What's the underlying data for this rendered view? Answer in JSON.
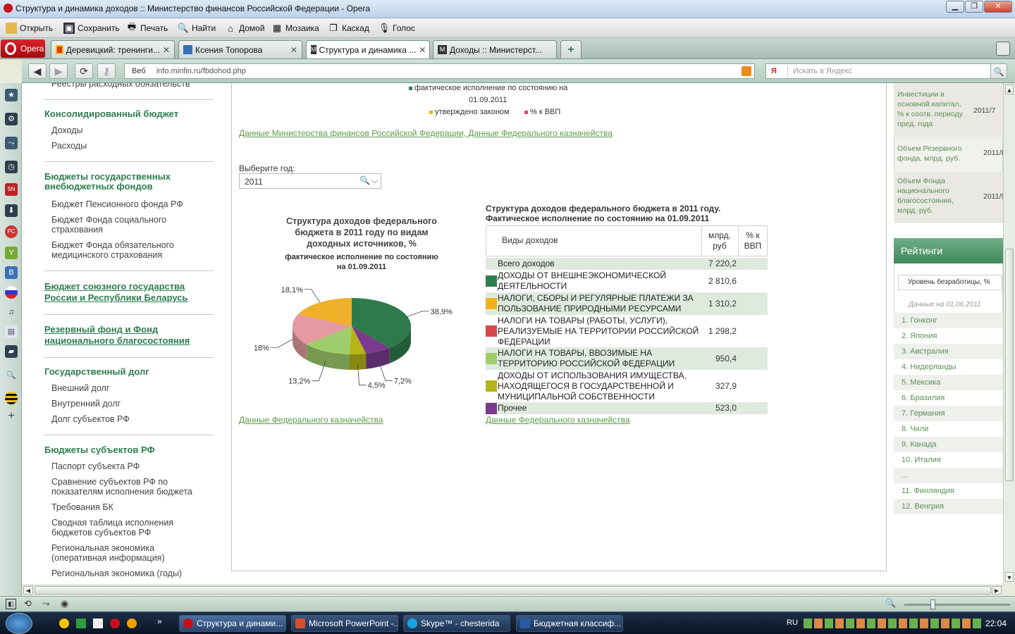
{
  "window": {
    "title": "Структура и динамика доходов :: Министерство финансов Российской Федерации - Opera",
    "minimize": "▁",
    "restore": "❐",
    "close": "✕"
  },
  "toolbar": {
    "open": "Открыть",
    "save": "Сохранить",
    "print": "Печать",
    "find": "Найти",
    "home": "Домой",
    "tile": "Мозаика",
    "cascade": "Каскад",
    "voice": "Голос"
  },
  "tabs": {
    "opera_button": "Opera",
    "items": [
      {
        "label": "Деревицкий: тренинги...",
        "close": "✕"
      },
      {
        "label": "Ксения Топорова",
        "close": "✕"
      },
      {
        "label": "Структура и динамика ...",
        "close": "✕"
      },
      {
        "label": "Доходы :: Министерст...",
        "close": "✕"
      }
    ],
    "new_tab": "+"
  },
  "address": {
    "prefix": "Веб",
    "url": "info.minfin.ru/fbdohod.php",
    "search_engine": "Я",
    "search_placeholder": "Искать в Яндекс"
  },
  "left_nav": {
    "cut_item": "Реестры расходных обязательств",
    "consolidated": {
      "heading": "Консолидированный бюджет",
      "items": [
        "Доходы",
        "Расходы"
      ]
    },
    "offbudget": {
      "heading1": "Бюджеты государственных",
      "heading2": "внебюджетных фондов",
      "items": [
        [
          "Бюджет Пенсионного фонда РФ"
        ],
        [
          "Бюджет Фонда социального",
          "страхования"
        ],
        [
          "Бюджет Фонда обязательного",
          "медицинского страхования"
        ]
      ]
    },
    "union": {
      "l1": "Бюджет союзного государства",
      "l2": "России и Республики Беларусь"
    },
    "reserve": {
      "l1": "Резервный фонд и Фонд",
      "l2": "национального благосостояния"
    },
    "debt": {
      "heading": "Государственный долг",
      "items": [
        "Внешний долг",
        "Внутренний долг",
        "Долг субъектов РФ"
      ]
    },
    "regions": {
      "heading": "Бюджеты субъектов РФ",
      "items": [
        [
          "Паспорт субъекта РФ"
        ],
        [
          "Сравнение субъектов РФ по",
          "показателям исполнения бюджета"
        ],
        [
          "Требования БК"
        ],
        [
          "Сводная таблица исполнения",
          "бюджетов субъектов РФ"
        ],
        [
          "Региональная экономика",
          "(оперативная информация)"
        ],
        [
          "Региональная экономика (годы)"
        ]
      ]
    }
  },
  "legend_top": {
    "item1a": "фактическое исполнение по состоянию на",
    "item1b": "01.09.2011",
    "item2": "утверждено законом",
    "item3": "% к ВВП",
    "colors": [
      "#2e7d4f",
      "#f0b21a",
      "#d8476a"
    ]
  },
  "source_link_top": "Данные Министерства финансов Российской Федерации, Данные Федерального казначейства",
  "year_select": {
    "label": "Выберите год:",
    "value": "2011"
  },
  "pie_title": {
    "l1": "Структура доходов федерального",
    "l2": "бюджета в 2011 году  по видам",
    "l3": "доходных источников, %",
    "sub1": "фактическое исполнение по состоянию",
    "sub2": "на 01.09.2011"
  },
  "chart_data": {
    "type": "pie",
    "title": "Структура доходов федерального бюджета в 2011 году  по видам доходных источников, %",
    "slices": [
      {
        "label": "38,9%",
        "value": 38.9,
        "color": "#2f7a4a"
      },
      {
        "label": "7,2%",
        "value": 7.2,
        "color": "#7c3a8e"
      },
      {
        "label": "4,5%",
        "value": 4.5,
        "color": "#b5b418"
      },
      {
        "label": "13,2%",
        "value": 13.2,
        "color": "#9fcd6b"
      },
      {
        "label": "18%",
        "value": 18.0,
        "color": "#e49aa0"
      },
      {
        "label": "18,1%",
        "value": 18.1,
        "color": "#efb02a"
      }
    ]
  },
  "pie_link": "Данные Федерального казначейства",
  "table": {
    "title1": "Структура доходов федерального бюджета в 2011 году.",
    "title2": "Фактическое исполнение по состоянию на 01.09.2011",
    "col_kind": "Виды доходов",
    "col_rub1": "млрд.",
    "col_rub2": "руб",
    "col_gdp1": "% к",
    "col_gdp2": "ВВП",
    "rows": [
      {
        "name": [
          "Всего доходов"
        ],
        "value": "7 220,2",
        "color": "",
        "shade": true
      },
      {
        "name": [
          "ДОХОДЫ ОТ ВНЕШНЕЭКОНОМИЧЕСКОЙ",
          "ДЕЯТЕЛЬНОСТИ"
        ],
        "value": "2 810,6",
        "color": "#2e7d4f",
        "shade": false
      },
      {
        "name": [
          "НАЛОГИ, СБОРЫ И РЕГУЛЯРНЫЕ ПЛАТЕЖИ ЗА",
          "ПОЛЬЗОВАНИЕ ПРИРОДНЫМИ РЕСУРСАМИ"
        ],
        "value": "1 310,2",
        "color": "#f0b21a",
        "shade": true
      },
      {
        "name": [
          "НАЛОГИ НА ТОВАРЫ (РАБОТЫ, УСЛУГИ),",
          "РЕАЛИЗУЕМЫЕ НА ТЕРРИТОРИИ РОССИЙСКОЙ",
          "ФЕДЕРАЦИИ"
        ],
        "value": "1 298,2",
        "color": "#d8474e",
        "shade": false
      },
      {
        "name": [
          "НАЛОГИ НА ТОВАРЫ, ВВОЗИМЫЕ НА",
          "ТЕРРИТОРИЮ РОССИЙСКОЙ ФЕДЕРАЦИИ"
        ],
        "value": "950,4",
        "color": "#9fcd6b",
        "shade": true
      },
      {
        "name": [
          "ДОХОДЫ ОТ ИСПОЛЬЗОВАНИЯ ИМУЩЕСТВА,",
          "НАХОДЯЩЕГОСЯ В ГОСУДАРСТВЕННОЙ И",
          "МУНИЦИПАЛЬНОЙ СОБСТВЕННОСТИ"
        ],
        "value": "327,9",
        "color": "#b5b418",
        "shade": false
      },
      {
        "name": [
          "Прочее"
        ],
        "value": "523,0",
        "color": "#7c3a8e",
        "shade": true
      }
    ]
  },
  "table_link": "Данные Федерального казначейства",
  "right_panel": {
    "indicators": [
      {
        "label": [
          "Инвестиции в",
          "основной капитал,",
          "% к соотв. периоду",
          "пред. года"
        ],
        "date": "2011/7"
      },
      {
        "label": [
          "Объем Резервного",
          "фонда, млрд. руб."
        ],
        "date": "2011/8"
      },
      {
        "label": [
          "Объем Фонда",
          "национального",
          "благосостояния,",
          "млрд. руб."
        ],
        "date": "2011/9"
      }
    ],
    "ratings_title": "Рейтинги",
    "ratings_select": "Уровень безработицы, %",
    "ratings_date": "Данные на 01.06.2011",
    "ranks": [
      "1. Гонконг",
      "2. Япония",
      "3. Австралия",
      "4. Нидерланды",
      "5. Мексика",
      "6. Бразилия",
      "7. Германия",
      "8. Чили",
      "9. Канада",
      "10. Италия",
      "...",
      "11. Финляндия",
      "12. Венгрия"
    ]
  },
  "taskbar": {
    "items": [
      "Структура и динами...",
      "Microsoft PowerPoint -...",
      "Skype™ - chesterida",
      "Бюджетная классиф..."
    ],
    "lang": "RU",
    "clock": "22:04",
    "expand": "»"
  }
}
